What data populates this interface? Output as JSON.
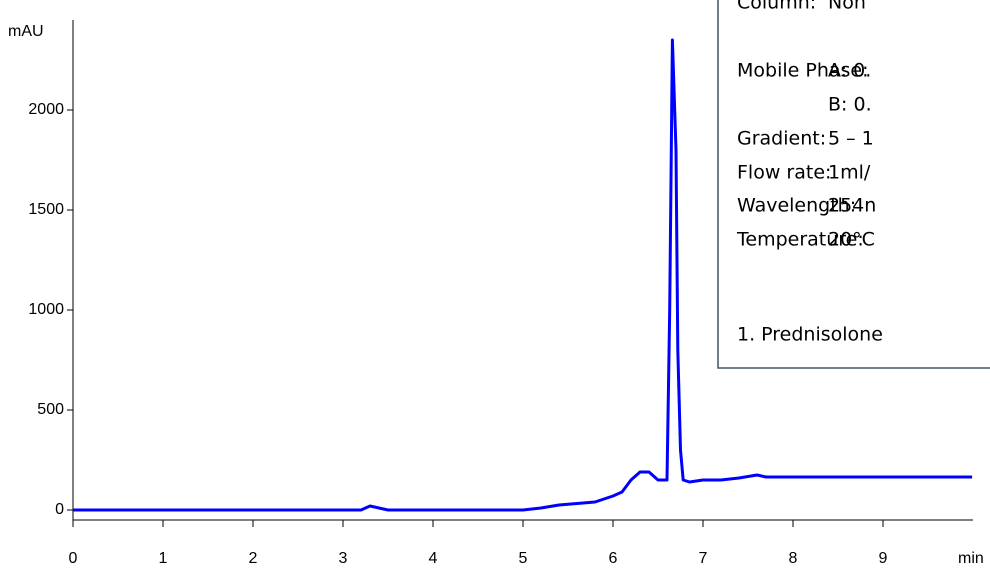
{
  "chart_data": {
    "type": "line",
    "xlabel": "min",
    "ylabel": "mAU",
    "xlim": [
      0,
      10
    ],
    "ylim": [
      -50,
      2450
    ],
    "xticks": [
      0,
      1,
      2,
      3,
      4,
      5,
      6,
      7,
      8,
      9
    ],
    "yticks": [
      0,
      500,
      1000,
      1500,
      2000
    ],
    "series": [
      {
        "color": "#0000ff",
        "x": [
          0,
          3.2,
          3.3,
          3.4,
          3.5,
          5.0,
          5.2,
          5.4,
          5.8,
          6.0,
          6.1,
          6.2,
          6.3,
          6.4,
          6.5,
          6.6,
          6.63,
          6.66,
          6.7,
          6.72,
          6.75,
          6.78,
          6.85,
          7.0,
          7.2,
          7.4,
          7.6,
          7.7,
          8.0,
          9.0,
          9.99
        ],
        "values": [
          0,
          0,
          20,
          10,
          0,
          0,
          10,
          25,
          40,
          70,
          90,
          150,
          190,
          190,
          150,
          150,
          1000,
          2350,
          1800,
          800,
          300,
          150,
          140,
          150,
          150,
          160,
          175,
          165,
          165,
          165,
          165
        ]
      }
    ],
    "annotations": [
      {
        "label": "Column:",
        "value": "Non"
      },
      {
        "label": "Mobile Phase:",
        "value": "A: 0."
      },
      {
        "value": "B: 0."
      },
      {
        "label": "Gradient:",
        "value": "5 – 1"
      },
      {
        "label": "Flow rate:",
        "value": "1ml/"
      },
      {
        "label": "Wavelength:",
        "value": "254n"
      },
      {
        "label": "Temperature:",
        "value": "20°C"
      },
      {
        "label": "1. Prednisolone"
      }
    ]
  }
}
